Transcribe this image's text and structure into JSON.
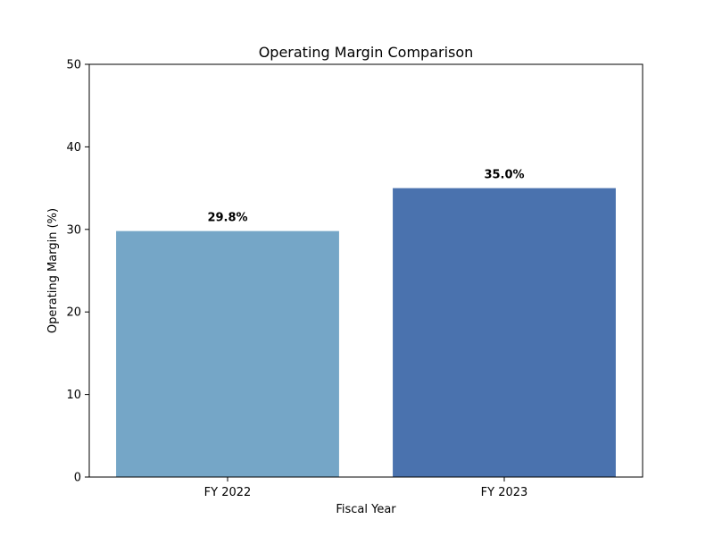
{
  "chart_data": {
    "type": "bar",
    "title": "Operating Margin Comparison",
    "xlabel": "Fiscal Year",
    "ylabel": "Operating Margin (%)",
    "categories": [
      "FY 2022",
      "FY 2023"
    ],
    "values": [
      29.8,
      35.0
    ],
    "data_labels": [
      "29.8%",
      "35.0%"
    ],
    "colors": [
      "#75a6c7",
      "#4a72ae"
    ],
    "ylim": [
      0,
      50
    ],
    "yticks": [
      0,
      10,
      20,
      30,
      40,
      50
    ],
    "grid": false,
    "legend": "none"
  }
}
